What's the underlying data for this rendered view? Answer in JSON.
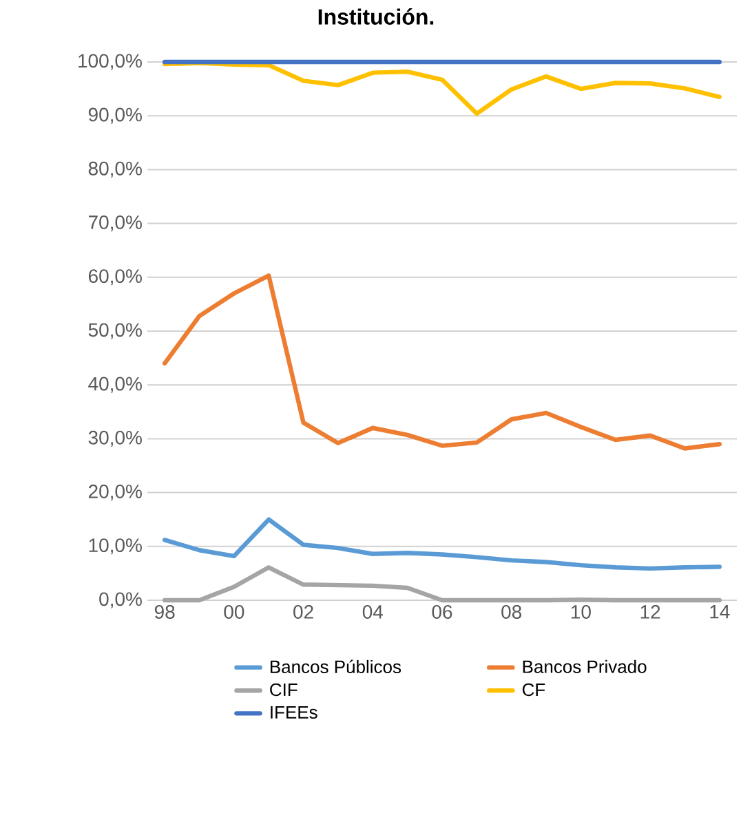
{
  "chart_data": {
    "type": "line",
    "title": "Institución.",
    "categories": [
      "98",
      null,
      "00",
      null,
      "02",
      null,
      "04",
      null,
      "06",
      null,
      "08",
      null,
      "10",
      null,
      "12",
      null,
      "14"
    ],
    "series": [
      {
        "name": "Bancos Públicos",
        "color": "#5b9bd5",
        "values": [
          11.2,
          9.3,
          8.2,
          15.0,
          10.3,
          9.7,
          8.6,
          8.8,
          8.5,
          8.0,
          7.4,
          7.1,
          6.5,
          6.1,
          5.9,
          6.1,
          6.2
        ]
      },
      {
        "name": "Bancos Privado",
        "color": "#ed7d31",
        "values": [
          44.0,
          52.8,
          57.0,
          60.3,
          33.0,
          29.2,
          32.0,
          30.7,
          28.7,
          29.3,
          33.6,
          34.8,
          32.2,
          29.8,
          30.6,
          28.2,
          29.0
        ]
      },
      {
        "name": "CIF",
        "color": "#a5a5a5",
        "values": [
          0,
          0,
          2.5,
          6.1,
          2.9,
          2.8,
          2.7,
          2.3,
          0,
          0,
          0,
          0,
          0.1,
          0,
          0,
          0,
          0
        ]
      },
      {
        "name": "CF",
        "color": "#ffc000",
        "values": [
          99.6,
          99.8,
          99.5,
          99.4,
          96.5,
          95.7,
          98.0,
          98.2,
          96.7,
          90.4,
          94.9,
          97.3,
          95.0,
          96.1,
          96.0,
          95.1,
          93.5
        ]
      },
      {
        "name": "IFEEs",
        "color": "#4472c4",
        "values": [
          100,
          100,
          100,
          100,
          100,
          100,
          100,
          100,
          100,
          100,
          100,
          100,
          100,
          100,
          100,
          100,
          100
        ]
      }
    ],
    "ylim": [
      0,
      100
    ],
    "yticks": [
      {
        "value": 0,
        "label": "0,0%"
      },
      {
        "value": 10,
        "label": "10,0%"
      },
      {
        "value": 20,
        "label": "20,0%"
      },
      {
        "value": 30,
        "label": "30,0%"
      },
      {
        "value": 40,
        "label": "40,0%"
      },
      {
        "value": 50,
        "label": "50,0%"
      },
      {
        "value": 60,
        "label": "60,0%"
      },
      {
        "value": 70,
        "label": "70,0%"
      },
      {
        "value": 80,
        "label": "80,0%"
      },
      {
        "value": 90,
        "label": "90,0%"
      },
      {
        "value": 100,
        "label": "100,0%"
      }
    ],
    "grid": "y",
    "legend": "bottom",
    "marker": "none",
    "line_style": "solid"
  }
}
